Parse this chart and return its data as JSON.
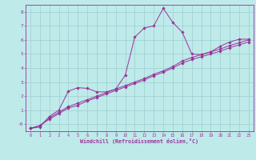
{
  "title": "",
  "xlabel": "Windchill (Refroidissement éolien,°C)",
  "ylabel": "",
  "bg_color": "#beeaea",
  "grid_color": "#9ecece",
  "line_color": "#993399",
  "xlim": [
    -0.5,
    23.5
  ],
  "ylim": [
    -0.5,
    8.5
  ],
  "xticks": [
    0,
    1,
    2,
    3,
    4,
    5,
    6,
    7,
    8,
    9,
    10,
    11,
    12,
    13,
    14,
    15,
    16,
    17,
    18,
    19,
    20,
    21,
    22,
    23
  ],
  "yticks": [
    0,
    1,
    2,
    3,
    4,
    5,
    6,
    7,
    8
  ],
  "ytick_labels": [
    "-0",
    "1",
    "2",
    "3",
    "4",
    "5",
    "6",
    "7",
    "8"
  ],
  "line1_x": [
    0,
    1,
    2,
    3,
    4,
    5,
    6,
    7,
    8,
    9,
    10,
    11,
    12,
    13,
    14,
    15,
    16,
    17,
    18,
    19,
    20,
    21,
    22,
    23
  ],
  "line1_y": [
    -0.3,
    -0.2,
    0.55,
    1.0,
    2.35,
    2.6,
    2.55,
    2.3,
    2.3,
    2.5,
    3.5,
    6.2,
    6.85,
    7.0,
    8.25,
    7.25,
    6.55,
    5.0,
    4.95,
    5.15,
    5.55,
    5.85,
    6.05,
    6.05
  ],
  "line2_x": [
    0,
    1,
    2,
    3,
    4,
    5,
    6,
    7,
    8,
    9,
    10,
    11,
    12,
    13,
    14,
    15,
    16,
    17,
    18,
    19,
    20,
    21,
    22,
    23
  ],
  "line2_y": [
    -0.3,
    -0.1,
    0.45,
    0.85,
    1.25,
    1.5,
    1.75,
    2.0,
    2.25,
    2.5,
    2.75,
    3.0,
    3.25,
    3.55,
    3.8,
    4.1,
    4.5,
    4.75,
    4.95,
    5.15,
    5.35,
    5.6,
    5.8,
    6.0
  ],
  "line3_x": [
    0,
    1,
    2,
    3,
    4,
    5,
    6,
    7,
    8,
    9,
    10,
    11,
    12,
    13,
    14,
    15,
    16,
    17,
    18,
    19,
    20,
    21,
    22,
    23
  ],
  "line3_y": [
    -0.3,
    -0.1,
    0.35,
    0.75,
    1.15,
    1.35,
    1.65,
    1.9,
    2.15,
    2.4,
    2.65,
    2.9,
    3.15,
    3.45,
    3.7,
    4.0,
    4.35,
    4.6,
    4.8,
    5.0,
    5.2,
    5.45,
    5.65,
    5.85
  ]
}
